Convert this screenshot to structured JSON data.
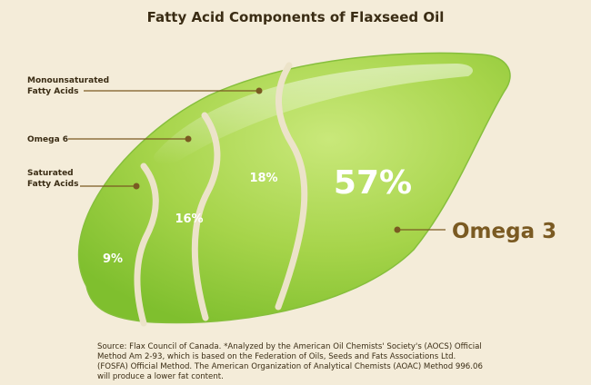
{
  "chart_data": {
    "type": "pie",
    "title": "Fatty Acid Components of Flaxseed Oil",
    "categories": [
      "Saturated Fatty Acids",
      "Omega 6",
      "Monounsaturated Fatty Acids",
      "Omega 3"
    ],
    "series": [
      {
        "values": [
          9,
          16,
          18,
          57
        ],
        "value_labels": [
          "9%",
          "16%",
          "18%",
          "57%"
        ]
      }
    ],
    "label_lines": {
      "saturated": [
        "Saturated",
        "Fatty Acids"
      ],
      "omega6": [
        "Omega 6"
      ],
      "mono": [
        "Monounsaturated",
        "Fatty Acids"
      ],
      "omega3": [
        "Omega 3"
      ]
    },
    "source": "Source: Flax Council of Canada. *Analyzed by the American Oil Chemists' Society's (AOCS) Official Method Am 2-93, which is based on the Federation of Oils, Seeds and Fats Associations Ltd. (FOSFA) Official Method. The American Organization of Analytical Chemists (AOAC) Method 996.06 will produce a lower fat content."
  },
  "colors": {
    "background": "#f4ecd9",
    "seed_dark": "#7fbf2e",
    "seed_mid": "#a6d44a",
    "seed_light": "#c9e87a",
    "divider": "#ece3c9",
    "callout": "#7a5a22",
    "omega3_label": "#7a5a22",
    "title_text": "#3a2c14",
    "value_text": "#ffffff"
  }
}
